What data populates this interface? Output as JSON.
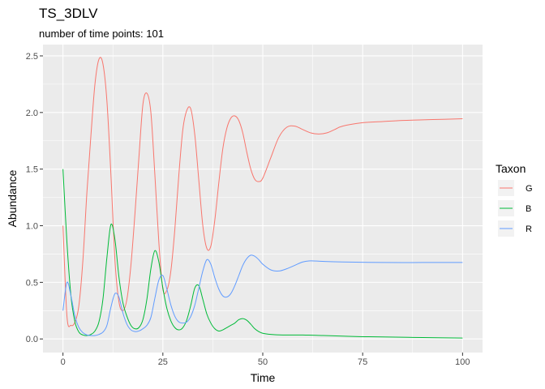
{
  "chart_data": {
    "type": "line",
    "title": "TS_3DLV",
    "subtitle": "number of time points: 101",
    "xlabel": "Time",
    "ylabel": "Abundance",
    "xlim": [
      -5,
      105
    ],
    "ylim": [
      -0.12,
      2.6
    ],
    "xticks": [
      0,
      25,
      50,
      75,
      100
    ],
    "xtick_labels": [
      "0",
      "25",
      "50",
      "75",
      "100"
    ],
    "yticks": [
      0,
      0.5,
      1.0,
      1.5,
      2.0,
      2.5
    ],
    "ytick_labels": [
      "0.0",
      "0.5",
      "1.0",
      "1.5",
      "2.0",
      "2.5"
    ],
    "grid": true,
    "legend": {
      "title": "Taxon",
      "position": "right"
    },
    "series": [
      {
        "name": "G",
        "color": "#F8766D",
        "x": [
          0,
          1,
          2,
          3,
          4,
          5,
          6,
          7,
          8,
          9,
          10,
          11,
          12,
          13,
          14,
          15,
          16,
          17,
          18,
          19,
          20,
          21,
          22,
          23,
          24,
          25,
          26,
          27,
          28,
          29,
          30,
          31,
          32,
          33,
          34,
          35,
          36,
          37,
          38,
          39,
          40,
          41,
          42,
          43,
          44,
          45,
          46,
          47,
          48,
          49,
          50,
          52,
          54,
          56,
          58,
          60,
          62,
          64,
          66,
          68,
          70,
          75,
          80,
          85,
          90,
          95,
          100
        ],
        "y": [
          1.0,
          0.2,
          0.12,
          0.15,
          0.3,
          0.7,
          1.3,
          1.8,
          2.25,
          2.47,
          2.43,
          2.1,
          1.45,
          0.7,
          0.33,
          0.25,
          0.35,
          0.65,
          1.1,
          1.6,
          2.07,
          2.17,
          2.0,
          1.45,
          0.85,
          0.44,
          0.43,
          0.6,
          0.97,
          1.45,
          1.85,
          2.02,
          2.03,
          1.8,
          1.4,
          1.0,
          0.8,
          0.82,
          1.05,
          1.38,
          1.68,
          1.86,
          1.95,
          1.97,
          1.93,
          1.82,
          1.65,
          1.5,
          1.41,
          1.39,
          1.42,
          1.6,
          1.78,
          1.87,
          1.88,
          1.85,
          1.82,
          1.81,
          1.82,
          1.85,
          1.88,
          1.91,
          1.92,
          1.93,
          1.935,
          1.94,
          1.945
        ]
      },
      {
        "name": "B",
        "color": "#00BA38",
        "x": [
          0,
          1,
          2,
          3,
          4,
          5,
          6,
          7,
          8,
          9,
          10,
          11,
          12,
          13,
          14,
          15,
          16,
          17,
          18,
          19,
          20,
          21,
          22,
          23,
          24,
          25,
          26,
          27,
          28,
          29,
          30,
          31,
          32,
          33,
          34,
          35,
          36,
          37,
          38,
          39,
          40,
          41,
          42,
          43,
          44,
          45,
          46,
          47,
          48,
          49,
          50,
          52,
          55,
          60,
          65,
          70,
          75,
          80,
          90,
          100
        ],
        "y": [
          1.5,
          0.85,
          0.38,
          0.15,
          0.06,
          0.035,
          0.03,
          0.04,
          0.07,
          0.15,
          0.35,
          0.72,
          1.01,
          0.88,
          0.55,
          0.32,
          0.2,
          0.12,
          0.09,
          0.1,
          0.17,
          0.35,
          0.62,
          0.78,
          0.68,
          0.45,
          0.27,
          0.16,
          0.1,
          0.08,
          0.1,
          0.17,
          0.3,
          0.45,
          0.47,
          0.35,
          0.22,
          0.14,
          0.09,
          0.07,
          0.08,
          0.1,
          0.12,
          0.14,
          0.17,
          0.18,
          0.165,
          0.13,
          0.09,
          0.065,
          0.05,
          0.04,
          0.035,
          0.035,
          0.03,
          0.025,
          0.02,
          0.018,
          0.012,
          0.008
        ]
      },
      {
        "name": "R",
        "color": "#619CFF",
        "x": [
          0,
          1,
          2,
          3,
          4,
          5,
          6,
          7,
          8,
          9,
          10,
          11,
          12,
          13,
          14,
          15,
          16,
          17,
          18,
          19,
          20,
          21,
          22,
          23,
          24,
          25,
          26,
          27,
          28,
          29,
          30,
          31,
          32,
          33,
          34,
          35,
          36,
          37,
          38,
          39,
          40,
          41,
          42,
          43,
          44,
          45,
          46,
          47,
          48,
          49,
          50,
          52,
          54,
          56,
          58,
          60,
          62,
          65,
          70,
          80,
          90,
          100
        ],
        "y": [
          0.25,
          0.5,
          0.38,
          0.2,
          0.1,
          0.055,
          0.035,
          0.03,
          0.03,
          0.04,
          0.06,
          0.12,
          0.28,
          0.4,
          0.37,
          0.23,
          0.13,
          0.08,
          0.065,
          0.07,
          0.09,
          0.12,
          0.19,
          0.36,
          0.52,
          0.56,
          0.44,
          0.3,
          0.2,
          0.15,
          0.14,
          0.15,
          0.2,
          0.3,
          0.45,
          0.6,
          0.7,
          0.66,
          0.54,
          0.44,
          0.38,
          0.37,
          0.4,
          0.47,
          0.56,
          0.65,
          0.71,
          0.74,
          0.73,
          0.7,
          0.66,
          0.61,
          0.6,
          0.62,
          0.65,
          0.68,
          0.69,
          0.685,
          0.68,
          0.675,
          0.675,
          0.675
        ]
      }
    ]
  }
}
